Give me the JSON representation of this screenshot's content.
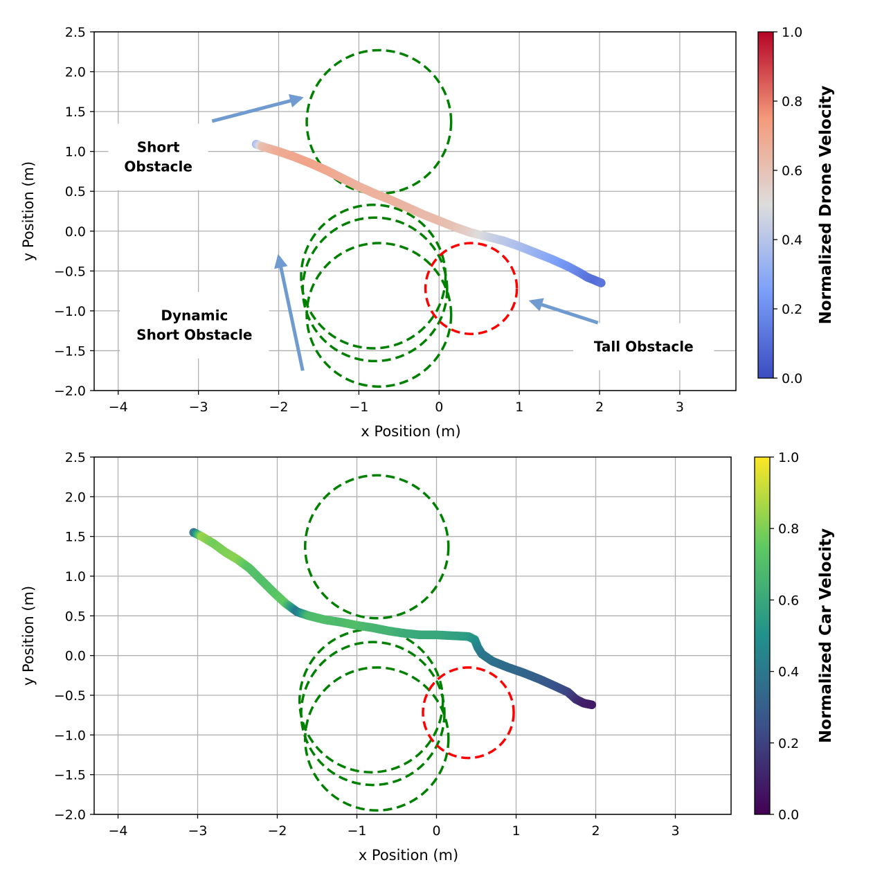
{
  "chart_data": [
    {
      "type": "scatter",
      "title": "",
      "xlabel": "x Position (m)",
      "ylabel": "y Position (m)",
      "xlim": [
        -4.3,
        3.7
      ],
      "ylim": [
        -2.0,
        2.5
      ],
      "xticks": [
        -4,
        -3,
        -2,
        -1,
        0,
        1,
        2,
        3
      ],
      "xtick_labels": [
        "−4",
        "−3",
        "−2",
        "−1",
        "0",
        "1",
        "2",
        "3"
      ],
      "yticks": [
        2.5,
        2.0,
        1.5,
        1.0,
        0.5,
        0.0,
        -0.5,
        -1.0,
        -1.5,
        -2.0
      ],
      "ytick_labels": [
        "2.5",
        "2.0",
        "1.5",
        "1.0",
        "0.5",
        "0.0",
        "−0.5",
        "−1.0",
        "−1.5",
        "−2.0"
      ],
      "grid": true,
      "colormap": "coolwarm",
      "colorbar": {
        "label": "Normalized Drone Velocity",
        "range": [
          0.0,
          1.0
        ],
        "ticks": [
          0.0,
          0.2,
          0.4,
          0.6,
          0.8,
          1.0
        ],
        "tick_labels": [
          "0.0",
          "0.2",
          "0.4",
          "0.6",
          "0.8",
          "1.0"
        ]
      },
      "trajectory": {
        "name": "drone path",
        "points": [
          [
            -2.28,
            1.09,
            0.35
          ],
          [
            -2.2,
            1.06,
            0.62
          ],
          [
            -2.0,
            1.0,
            0.68
          ],
          [
            -1.8,
            0.93,
            0.7
          ],
          [
            -1.6,
            0.85,
            0.71
          ],
          [
            -1.4,
            0.76,
            0.7
          ],
          [
            -1.2,
            0.66,
            0.68
          ],
          [
            -1.0,
            0.56,
            0.66
          ],
          [
            -0.8,
            0.47,
            0.66
          ],
          [
            -0.6,
            0.39,
            0.66
          ],
          [
            -0.4,
            0.3,
            0.65
          ],
          [
            -0.2,
            0.21,
            0.63
          ],
          [
            0.0,
            0.13,
            0.63
          ],
          [
            0.2,
            0.05,
            0.6
          ],
          [
            0.4,
            -0.02,
            0.55
          ],
          [
            0.6,
            -0.07,
            0.47
          ],
          [
            0.8,
            -0.12,
            0.42
          ],
          [
            1.0,
            -0.19,
            0.38
          ],
          [
            1.2,
            -0.27,
            0.33
          ],
          [
            1.4,
            -0.35,
            0.28
          ],
          [
            1.6,
            -0.44,
            0.22
          ],
          [
            1.75,
            -0.52,
            0.17
          ],
          [
            1.85,
            -0.58,
            0.13
          ],
          [
            1.95,
            -0.62,
            0.1
          ],
          [
            2.02,
            -0.65,
            0.12
          ]
        ]
      },
      "obstacles": [
        {
          "label": "short",
          "cx": -0.75,
          "cy": 1.37,
          "r": 0.9,
          "color": "#008000"
        },
        {
          "label": "dynamic",
          "cx": -0.82,
          "cy": -0.57,
          "r": 0.9,
          "color": "#008000"
        },
        {
          "label": "dynamic",
          "cx": -0.8,
          "cy": -0.73,
          "r": 0.9,
          "color": "#008000"
        },
        {
          "label": "dynamic",
          "cx": -0.75,
          "cy": -1.05,
          "r": 0.9,
          "color": "#008000"
        },
        {
          "label": "tall",
          "cx": 0.4,
          "cy": -0.72,
          "r": 0.57,
          "color": "#ff0000"
        }
      ],
      "annotations": [
        {
          "lines": [
            "Short",
            "Obstacle"
          ],
          "text_at": [
            -3.5,
            0.93
          ],
          "arrow_from": [
            -2.83,
            1.38
          ],
          "arrow_to": [
            -1.72,
            1.67
          ]
        },
        {
          "lines": [
            "Dynamic",
            "Short Obstacle"
          ],
          "text_at": [
            -3.05,
            -1.18
          ],
          "arrow_from": [
            -1.7,
            -1.75
          ],
          "arrow_to": [
            -2.0,
            -0.32
          ]
        },
        {
          "lines": [
            "Tall Obstacle"
          ],
          "text_at": [
            2.55,
            -1.45
          ],
          "arrow_from": [
            1.98,
            -1.15
          ],
          "arrow_to": [
            1.15,
            -0.88
          ]
        }
      ],
      "arrow_color": "#6f9bd0"
    },
    {
      "type": "scatter",
      "title": "",
      "xlabel": "x Position (m)",
      "ylabel": "y Position (m)",
      "xlim": [
        -4.3,
        3.7
      ],
      "ylim": [
        -2.0,
        2.5
      ],
      "xticks": [
        -4,
        -3,
        -2,
        -1,
        0,
        1,
        2,
        3
      ],
      "xtick_labels": [
        "−4",
        "−3",
        "−2",
        "−1",
        "0",
        "1",
        "2",
        "3"
      ],
      "yticks": [
        2.5,
        2.0,
        1.5,
        1.0,
        0.5,
        0.0,
        -0.5,
        -1.0,
        -1.5,
        -2.0
      ],
      "ytick_labels": [
        "2.5",
        "2.0",
        "1.5",
        "1.0",
        "0.5",
        "0.0",
        "−0.5",
        "−1.0",
        "−1.5",
        "−2.0"
      ],
      "grid": true,
      "colormap": "viridis",
      "colorbar": {
        "label": "Normalized Car Velocity",
        "range": [
          0.0,
          1.0
        ],
        "ticks": [
          0.0,
          0.2,
          0.4,
          0.6,
          0.8,
          1.0
        ],
        "tick_labels": [
          "0.0",
          "0.2",
          "0.4",
          "0.6",
          "0.8",
          "1.0"
        ]
      },
      "trajectory": {
        "name": "car path",
        "points": [
          [
            -3.05,
            1.55,
            0.35
          ],
          [
            -2.95,
            1.5,
            0.85
          ],
          [
            -2.8,
            1.41,
            0.78
          ],
          [
            -2.65,
            1.3,
            0.8
          ],
          [
            -2.5,
            1.21,
            0.82
          ],
          [
            -2.35,
            1.1,
            0.72
          ],
          [
            -2.2,
            0.95,
            0.7
          ],
          [
            -2.05,
            0.8,
            0.72
          ],
          [
            -1.9,
            0.66,
            0.75
          ],
          [
            -1.75,
            0.55,
            0.4
          ],
          [
            -1.6,
            0.5,
            0.68
          ],
          [
            -1.4,
            0.45,
            0.7
          ],
          [
            -1.2,
            0.42,
            0.68
          ],
          [
            -1.0,
            0.38,
            0.7
          ],
          [
            -0.8,
            0.35,
            0.66
          ],
          [
            -0.6,
            0.31,
            0.65
          ],
          [
            -0.4,
            0.28,
            0.62
          ],
          [
            -0.2,
            0.26,
            0.6
          ],
          [
            0.0,
            0.26,
            0.6
          ],
          [
            0.2,
            0.25,
            0.58
          ],
          [
            0.4,
            0.24,
            0.55
          ],
          [
            0.48,
            0.2,
            0.52
          ],
          [
            0.52,
            0.1,
            0.45
          ],
          [
            0.57,
            0.02,
            0.4
          ],
          [
            0.7,
            -0.07,
            0.38
          ],
          [
            0.9,
            -0.15,
            0.35
          ],
          [
            1.1,
            -0.22,
            0.33
          ],
          [
            1.3,
            -0.3,
            0.3
          ],
          [
            1.5,
            -0.39,
            0.26
          ],
          [
            1.65,
            -0.46,
            0.22
          ],
          [
            1.75,
            -0.55,
            0.16
          ],
          [
            1.85,
            -0.6,
            0.1
          ],
          [
            1.95,
            -0.62,
            0.08
          ]
        ]
      },
      "obstacles": [
        {
          "label": "short",
          "cx": -0.75,
          "cy": 1.37,
          "r": 0.9,
          "color": "#008000"
        },
        {
          "label": "dynamic",
          "cx": -0.82,
          "cy": -0.57,
          "r": 0.9,
          "color": "#008000"
        },
        {
          "label": "dynamic",
          "cx": -0.8,
          "cy": -0.73,
          "r": 0.9,
          "color": "#008000"
        },
        {
          "label": "dynamic",
          "cx": -0.75,
          "cy": -1.05,
          "r": 0.9,
          "color": "#008000"
        },
        {
          "label": "tall",
          "cx": 0.4,
          "cy": -0.72,
          "r": 0.57,
          "color": "#ff0000"
        }
      ],
      "annotations": []
    }
  ]
}
